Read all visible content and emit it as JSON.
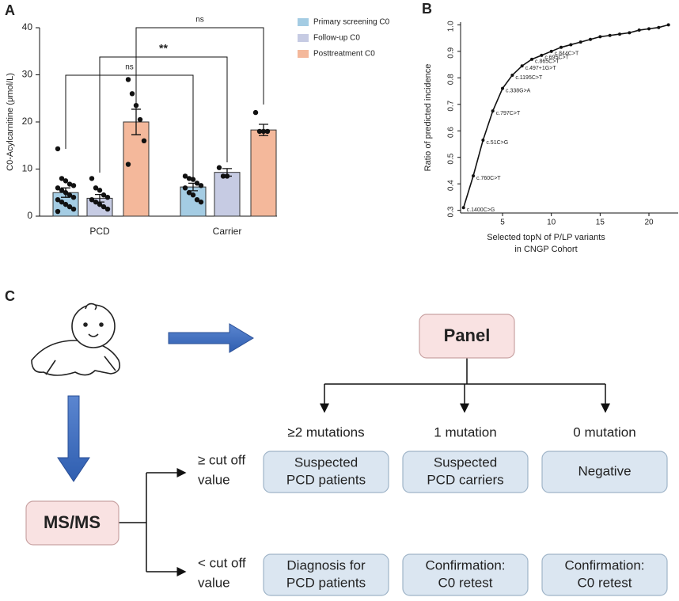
{
  "panel_labels": [
    "A",
    "B",
    "C"
  ],
  "chart_data": [
    {
      "type": "bar",
      "ylabel": "C0-Acylcarnitine (μmol/L)",
      "categories": [
        "PCD",
        "Carrier"
      ],
      "ylim": [
        0,
        40
      ],
      "yticks": [
        0,
        10,
        20,
        30,
        40
      ],
      "grid": false,
      "legend": "upper right",
      "series": [
        {
          "name": "Primary screening C0",
          "color": "#a4cce3",
          "values": [
            5,
            6.2
          ],
          "errors": [
            1,
            0.8
          ],
          "points": [
            [
              14.3,
              8,
              7.5,
              6.8,
              6.5,
              6,
              5.5,
              5,
              4.5,
              4,
              3.5,
              3,
              2.5,
              2,
              1.5,
              1
            ],
            [
              8.5,
              8,
              7.8,
              7,
              6.5,
              6,
              5,
              4.5,
              3.5,
              3
            ]
          ]
        },
        {
          "name": "Follow-up C0",
          "color": "#c6cbe3",
          "values": [
            3.8,
            9.3
          ],
          "errors": [
            0.8,
            0.8
          ],
          "points": [
            [
              8,
              6,
              5.5,
              4.5,
              4,
              3.5,
              3,
              2.5,
              2,
              1.5
            ],
            [
              10.3,
              8.5,
              8.5
            ]
          ]
        },
        {
          "name": "Posttreatment C0",
          "color": "#f4b89b",
          "values": [
            20,
            18.3
          ],
          "errors": [
            2.7,
            1.2
          ],
          "points": [
            [
              29,
              26,
              23.5,
              20.5,
              16,
              11
            ],
            [
              22,
              18,
              18,
              18
            ]
          ]
        }
      ],
      "annotations": [
        "ns",
        "**",
        "ns"
      ]
    },
    {
      "type": "line",
      "ylabel": "Ratio of predicted incidence",
      "xlabel": [
        "Selected topN of P/LP variants",
        "in CNGP Cohort"
      ],
      "xlim": [
        0.7,
        23
      ],
      "xticks": [
        5,
        10,
        15,
        20
      ],
      "ylim": [
        0.29,
        1.01
      ],
      "yticks": [
        0.3,
        0.4,
        0.5,
        0.6,
        0.7,
        0.8,
        0.9,
        {
          "value": 1.0,
          "label": "1.0"
        }
      ],
      "color": "#111111",
      "x": [
        1,
        2,
        3,
        4,
        5,
        6,
        7,
        8,
        9,
        10,
        11,
        12,
        13,
        14,
        15,
        16,
        17,
        18,
        19,
        20,
        21,
        22
      ],
      "values": [
        0.31,
        0.43,
        0.565,
        0.675,
        0.76,
        0.81,
        0.845,
        0.87,
        0.885,
        0.9,
        0.915,
        0.925,
        0.935,
        0.945,
        0.955,
        0.96,
        0.965,
        0.97,
        0.98,
        0.985,
        0.99,
        1.0
      ],
      "point_labels": [
        "c.1400C>G",
        "c.760C>T",
        "c.51C>G",
        "c.797C>T",
        "c.338G>A",
        "c.1195C>T",
        "c.497+1G>T",
        "c.865C>T",
        "c.695C>T",
        "c.844C>T",
        null,
        null,
        null,
        null,
        null,
        null,
        null,
        null,
        null,
        null,
        null,
        null
      ]
    }
  ],
  "diagram": {
    "panel": "Panel",
    "branches": [
      "≥2 mutations",
      "1 mutation",
      "0 mutation"
    ],
    "start": "MS/MS",
    "conditions": [
      [
        "≥ cut off",
        "value"
      ],
      [
        "< cut off",
        "value"
      ]
    ],
    "outcomes": [
      [
        [
          "Suspected",
          "PCD patients"
        ],
        [
          "Suspected",
          "PCD carriers"
        ],
        [
          "Negative"
        ]
      ],
      [
        [
          "Diagnosis for",
          "PCD patients"
        ],
        [
          "Confirmation:",
          "C0 retest"
        ],
        [
          "Confirmation:",
          "C0 retest"
        ]
      ]
    ]
  }
}
